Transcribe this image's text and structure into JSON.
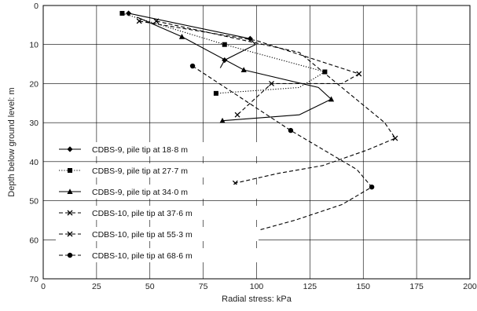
{
  "chart_data": {
    "type": "line",
    "title": "",
    "xlabel": "Radial stress: kPa",
    "ylabel": "Depth below ground level: m",
    "xlim": [
      0,
      200
    ],
    "ylim": [
      0,
      70
    ],
    "y_inverted": true,
    "x_axis_position": "top-origin",
    "x_ticks": [
      0,
      25,
      50,
      75,
      100,
      125,
      150,
      175,
      200
    ],
    "y_ticks": [
      0,
      10,
      20,
      30,
      40,
      50,
      60,
      70
    ],
    "grid": true,
    "legend_position": "left",
    "series": [
      {
        "name": "CDBS-9, pile tip at 18·8 m",
        "line_style": "solid",
        "marker": "diamond",
        "points": [
          [
            40,
            2
          ],
          [
            97,
            8.5
          ],
          [
            99.5,
            10
          ],
          [
            85,
            14
          ],
          [
            83,
            16
          ]
        ],
        "marked": [
          [
            40,
            2
          ],
          [
            97,
            8.5
          ],
          [
            85,
            14
          ]
        ]
      },
      {
        "name": "CDBS-9, pile tip at 27·7 m",
        "line_style": "dotted",
        "marker": "square",
        "points": [
          [
            37,
            2
          ],
          [
            85,
            10
          ],
          [
            132,
            17
          ],
          [
            120,
            21
          ],
          [
            81,
            22.5
          ]
        ],
        "marked": [
          [
            37,
            2
          ],
          [
            85,
            10
          ],
          [
            132,
            17
          ],
          [
            81,
            22.5
          ]
        ]
      },
      {
        "name": "CDBS-9, pile tip at 34·0 m",
        "line_style": "solid",
        "marker": "triangle",
        "points": [
          [
            44,
            3
          ],
          [
            65,
            8
          ],
          [
            94,
            16.5
          ],
          [
            129,
            21
          ],
          [
            135,
            24
          ],
          [
            120,
            28
          ],
          [
            84,
            29.5
          ]
        ],
        "marked": [
          [
            65,
            8
          ],
          [
            94,
            16.5
          ],
          [
            135,
            24
          ],
          [
            84,
            29.5
          ]
        ]
      },
      {
        "name": "CDBS-10, pile tip at 37·6 m",
        "line_style": "dashed",
        "marker": "x",
        "points": [
          [
            45,
            4
          ],
          [
            100,
            9
          ],
          [
            148,
            17.5
          ],
          [
            140,
            20
          ],
          [
            107,
            20
          ],
          [
            91,
            28
          ]
        ],
        "marked": [
          [
            45,
            4
          ],
          [
            148,
            17.5
          ],
          [
            107,
            20
          ],
          [
            91,
            28
          ]
        ]
      },
      {
        "name": "CDBS-10, pile tip at 55·3 m",
        "line_style": "dashed",
        "marker": "x",
        "points": [
          [
            53,
            4
          ],
          [
            120,
            12
          ],
          [
            160,
            30
          ],
          [
            165,
            34
          ],
          [
            152,
            37
          ],
          [
            131,
            41
          ],
          [
            110,
            43
          ],
          [
            90,
            45.5
          ]
        ],
        "marked": [
          [
            53,
            4
          ],
          [
            165,
            34
          ],
          [
            90,
            45.5
          ]
        ]
      },
      {
        "name": "CDBS-10, pile tip at 68·6 m",
        "line_style": "dashed",
        "marker": "circle",
        "points": [
          [
            70,
            15.5
          ],
          [
            116,
            32
          ],
          [
            147,
            42
          ],
          [
            154,
            46.5
          ],
          [
            140,
            51
          ],
          [
            118,
            55
          ],
          [
            98,
            58
          ]
        ],
        "marked": [
          [
            70,
            15.5
          ],
          [
            116,
            32
          ],
          [
            154,
            46.5
          ],
          [
            98,
            58
          ]
        ]
      }
    ]
  }
}
